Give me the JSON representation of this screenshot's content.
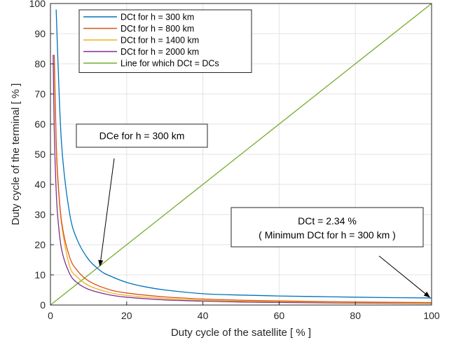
{
  "chart_data": {
    "type": "line",
    "title": "",
    "xlabel": "Duty cycle of the satellite [ % ]",
    "ylabel": "Duty cycle of the terminal [ % ]",
    "xlim": [
      0,
      100
    ],
    "ylim": [
      0,
      100
    ],
    "xticks": [
      "0",
      "20",
      "40",
      "60",
      "80",
      "100"
    ],
    "yticks": [
      "0",
      "10",
      "20",
      "30",
      "40",
      "50",
      "60",
      "70",
      "80",
      "90",
      "100"
    ],
    "grid": true,
    "legend_position": "top-left",
    "series": [
      {
        "name": "DCt  for  h = 300 km",
        "color": "#0072BD",
        "x": [
          1.5,
          2,
          3,
          5,
          7,
          10,
          13,
          15,
          20,
          25,
          30,
          40,
          50,
          60,
          70,
          80,
          90,
          100
        ],
        "y": [
          98,
          79.5,
          52,
          30.6,
          21.7,
          15.1,
          11.5,
          10.0,
          7.5,
          6.0,
          5.0,
          3.75,
          3.3,
          3.0,
          2.8,
          2.6,
          2.45,
          2.34
        ]
      },
      {
        "name": "DCt  for  h = 800 km",
        "color": "#D95319",
        "x": [
          1,
          1.5,
          2,
          3,
          5,
          7,
          10,
          15,
          20,
          30,
          40,
          50,
          60,
          80,
          100
        ],
        "y": [
          83,
          55,
          41,
          27,
          16,
          11.5,
          8.0,
          5.3,
          4.0,
          2.7,
          2.0,
          1.6,
          1.35,
          1.0,
          0.8
        ]
      },
      {
        "name": "DCt  for  h = 1400 km",
        "color": "#EDB120",
        "x": [
          1,
          1.5,
          2,
          3,
          5,
          7,
          10,
          15,
          20,
          30,
          40,
          50,
          60,
          80,
          100
        ],
        "y": [
          80,
          53,
          40,
          26,
          13,
          9.3,
          6.5,
          4.3,
          3.2,
          2.2,
          1.6,
          1.3,
          1.1,
          0.8,
          0.6
        ]
      },
      {
        "name": "DCt  for  h = 2000 km",
        "color": "#7E2F8E",
        "x": [
          0.7,
          1,
          1.5,
          2,
          3,
          5,
          7,
          10,
          15,
          20,
          30,
          40,
          50,
          60,
          80,
          100
        ],
        "y": [
          83,
          58,
          38,
          28,
          18,
          10.5,
          7.4,
          5.2,
          3.5,
          2.6,
          1.7,
          1.3,
          1.0,
          0.85,
          0.65,
          0.5
        ]
      },
      {
        "name": "Line  for  which  DCt = DCs",
        "color": "#77AC30",
        "x": [
          0,
          100
        ],
        "y": [
          0,
          100
        ]
      }
    ],
    "annotations": [
      {
        "lines": [
          "DCe  for  h = 300 km"
        ],
        "arrow_to": [
          13,
          13
        ]
      },
      {
        "lines": [
          "DCt = 2.34 %",
          "( Minimum DCt  for  h = 300 km )"
        ],
        "arrow_to": [
          99.5,
          2.6
        ]
      }
    ]
  }
}
